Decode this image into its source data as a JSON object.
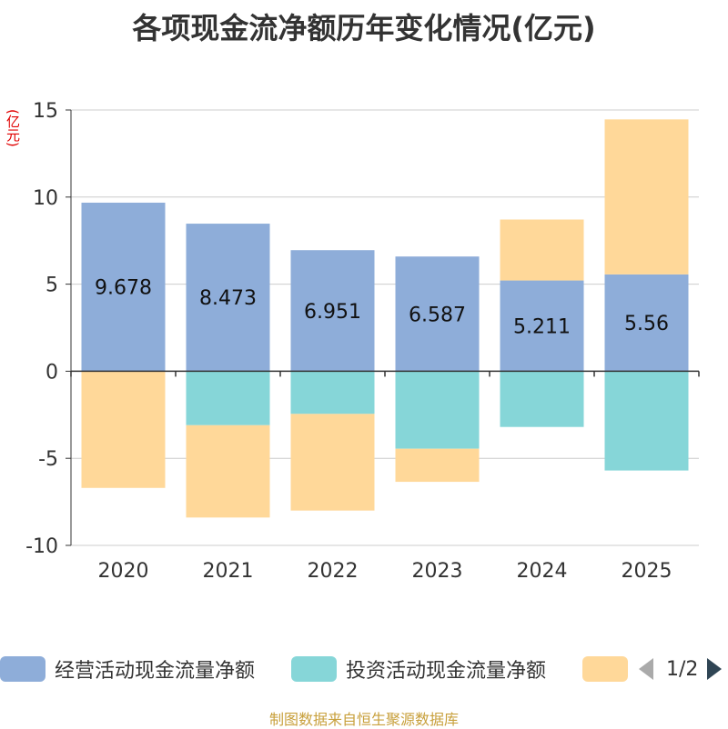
{
  "title": "各项现金流净额历年变化情况(亿元)",
  "unit_label": "(亿元)",
  "source": "制图数据来自恒生聚源数据库",
  "pager": {
    "text": "1/2"
  },
  "colors": {
    "operating": "#8eadd9",
    "investing": "#86d6d8",
    "financing": "#ffd899",
    "axis": "#333333",
    "grid": "#cccccc"
  },
  "chart_data": {
    "type": "bar",
    "stacked": true,
    "categories": [
      "2020",
      "2021",
      "2022",
      "2023",
      "2024",
      "2025"
    ],
    "ylim": [
      -10,
      15
    ],
    "yticks": [
      -10,
      -5,
      0,
      5,
      10,
      15
    ],
    "series": [
      {
        "name": "经营活动现金流量净额",
        "key": "operating",
        "values": [
          9.678,
          8.473,
          6.951,
          6.587,
          5.211,
          5.56
        ],
        "labels": [
          "9.678",
          "8.473",
          "6.951",
          "6.587",
          "5.211",
          "5.56"
        ]
      },
      {
        "name": "投资活动现金流量净额",
        "key": "investing",
        "values": [
          0,
          -3.1,
          -2.45,
          -4.45,
          -3.2,
          -5.7
        ]
      },
      {
        "name": "",
        "key": "financing",
        "values": [
          -6.7,
          -5.3,
          -5.55,
          -1.9,
          3.5,
          8.9
        ]
      }
    ]
  }
}
